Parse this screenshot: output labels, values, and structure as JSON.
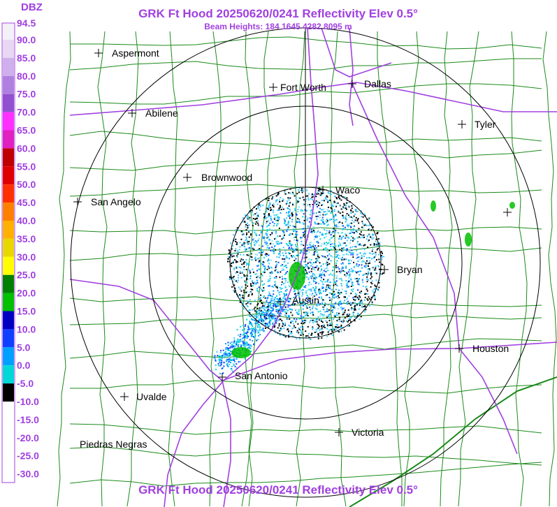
{
  "header": {
    "unit": "DBZ",
    "title": "GRK Ft Hood 20250620/0241 Reflectivity Elev 0.5°",
    "beam_heights": "Beam Heights: 184 1645 4282 8095 m",
    "footer_title": "GRK Ft Hood 20250620/0241 Reflectivity Elev 0.5°"
  },
  "scale": {
    "labels": [
      "94.5",
      "90.0",
      "85.0",
      "80.0",
      "75.0",
      "70.0",
      "65.0",
      "60.0",
      "55.0",
      "50.0",
      "45.0",
      "40.0",
      "35.0",
      "30.0",
      "25.0",
      "20.0",
      "15.0",
      "10.0",
      "5.0",
      "0.0",
      "-5.0",
      "-10.0",
      "-15.0",
      "-20.0",
      "-25.0",
      "-30.0"
    ]
  },
  "cities": [
    {
      "label": "Aspermont"
    },
    {
      "label": "Abilene"
    },
    {
      "label": "Fort Worth"
    },
    {
      "label": "Dallas"
    },
    {
      "label": "Tyler"
    },
    {
      "label": "Brownwood"
    },
    {
      "label": "Waco"
    },
    {
      "label": "San Angelo"
    },
    {
      "label": "Bryan"
    },
    {
      "label": "Austin"
    },
    {
      "label": "Houston"
    },
    {
      "label": "San Antonio"
    },
    {
      "label": "Uvalde"
    },
    {
      "label": "Victoria"
    },
    {
      "label": "Piedras Negras"
    }
  ]
}
